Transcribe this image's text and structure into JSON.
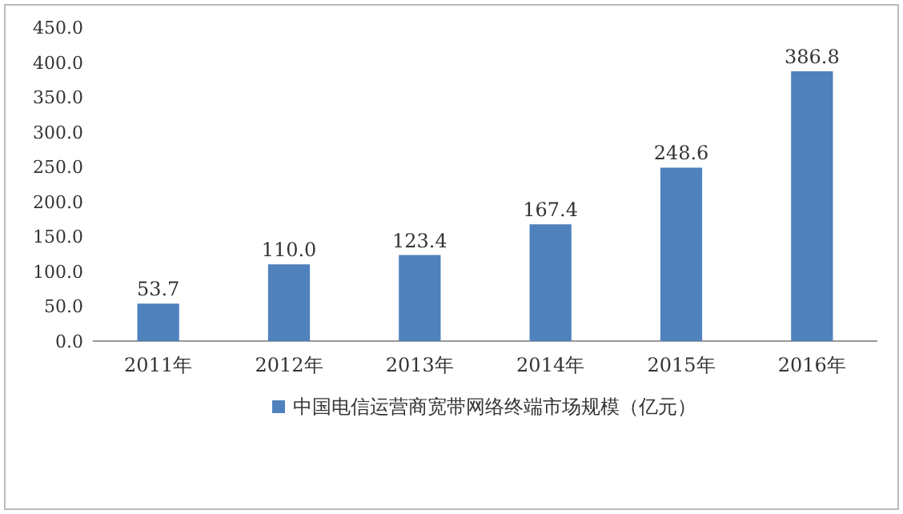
{
  "chart_data": {
    "type": "bar",
    "categories": [
      "2011年",
      "2012年",
      "2013年",
      "2014年",
      "2015年",
      "2016年"
    ],
    "series": [
      {
        "name": "中国电信运营商宽带网络终端市场规模（亿元）",
        "color": "#4f81bd",
        "values": [
          53.7,
          110.0,
          123.4,
          167.4,
          248.6,
          386.8
        ],
        "value_labels": [
          "53.7",
          "110.0",
          "123.4",
          "167.4",
          "248.6",
          "386.8"
        ]
      }
    ],
    "ylim": [
      0,
      450
    ],
    "yticks": [
      {
        "value": 0,
        "label": "0.0"
      },
      {
        "value": 50,
        "label": "50.0"
      },
      {
        "value": 100,
        "label": "100.0"
      },
      {
        "value": 150,
        "label": "150.0"
      },
      {
        "value": 200,
        "label": "200.0"
      },
      {
        "value": 250,
        "label": "250.0"
      },
      {
        "value": 300,
        "label": "300.0"
      },
      {
        "value": 350,
        "label": "350.0"
      },
      {
        "value": 400,
        "label": "400.0"
      },
      {
        "value": 450,
        "label": "450.0"
      }
    ],
    "legend": "bottom"
  }
}
